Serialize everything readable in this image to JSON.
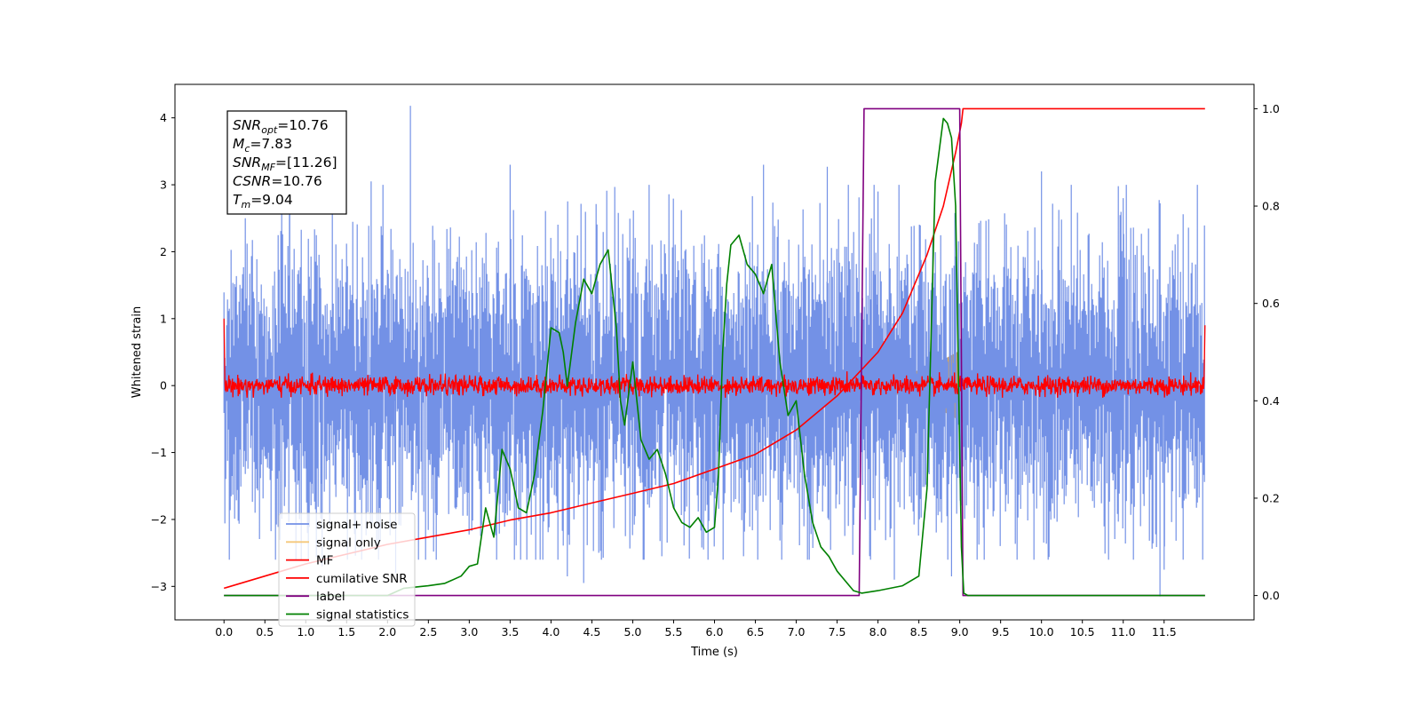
{
  "chart_data": {
    "type": "line",
    "xlabel": "Time (s)",
    "ylabel": "Whitened strain",
    "xlim": [
      -0.6,
      12.6
    ],
    "ylim": [
      -3.5,
      4.5
    ],
    "y2lim": [
      -0.05,
      1.05
    ],
    "xticks": [
      "0.0",
      "0.5",
      "1.0",
      "1.5",
      "2.0",
      "2.5",
      "3.0",
      "3.5",
      "4.0",
      "4.5",
      "5.0",
      "5.5",
      "6.0",
      "6.5",
      "7.0",
      "7.5",
      "8.0",
      "8.5",
      "9.0",
      "9.5",
      "10.0",
      "10.5",
      "11.0",
      "11.5"
    ],
    "yticks": [
      "4",
      "3",
      "2",
      "1",
      "0",
      "−1",
      "−2",
      "−3"
    ],
    "y2ticks": [
      "1.0",
      "0.8",
      "0.6",
      "0.4",
      "0.2",
      "0.0"
    ],
    "grid": false,
    "legend_position": "lower-left",
    "annotation": {
      "lines": [
        {
          "main": "SNR",
          "sub": "opt",
          "rest": "=10.76"
        },
        {
          "main": "M",
          "sub": "c",
          "rest": "=7.83"
        },
        {
          "main": "SNR",
          "sub": "MF",
          "rest": "=[11.26]"
        },
        {
          "main": "CSNR",
          "sub": "",
          "rest": "=10.76"
        },
        {
          "main": "T",
          "sub": "m",
          "rest": "=9.04"
        }
      ]
    },
    "series": [
      {
        "name": "signal+ noise",
        "axis": "left",
        "color": "#7391e6",
        "description_range": [
          -2.9,
          4.2
        ],
        "approx_std": 1.0,
        "x_range": [
          0.0,
          12.0
        ]
      },
      {
        "name": "signal only",
        "axis": "left",
        "color": "#f5c87a",
        "chirp": {
          "start": 7.6,
          "end": 9.04,
          "amp_start": 0.05,
          "amp_end": 0.55
        }
      },
      {
        "name": "MF",
        "axis": "left",
        "color": "#ff0000",
        "approx_std": 0.07,
        "x_range": [
          0.0,
          12.0
        ],
        "edge_values": [
          1.0,
          0.9
        ]
      },
      {
        "name": "cumilative SNR",
        "axis": "right",
        "color": "#ff0000",
        "x": [
          0.0,
          0.5,
          1.0,
          1.5,
          2.0,
          2.5,
          3.0,
          3.5,
          4.0,
          4.5,
          5.0,
          5.5,
          6.0,
          6.5,
          7.0,
          7.5,
          8.0,
          8.3,
          8.6,
          8.8,
          8.95,
          9.02,
          9.04,
          10.0,
          11.0,
          12.0
        ],
        "y": [
          0.015,
          0.04,
          0.065,
          0.085,
          0.105,
          0.12,
          0.135,
          0.155,
          0.17,
          0.19,
          0.21,
          0.23,
          0.26,
          0.29,
          0.34,
          0.41,
          0.5,
          0.58,
          0.7,
          0.8,
          0.91,
          0.97,
          1.0,
          1.0,
          1.0,
          1.0
        ]
      },
      {
        "name": "label",
        "axis": "right",
        "color": "#800080",
        "x": [
          0.0,
          7.77,
          7.83,
          9.0,
          9.04,
          12.0
        ],
        "y": [
          0.0,
          0.0,
          1.0,
          1.0,
          0.0,
          0.0
        ]
      },
      {
        "name": "signal statistics",
        "axis": "right",
        "color": "#008000",
        "x": [
          0.0,
          0.5,
          1.0,
          2.0,
          2.2,
          2.5,
          2.7,
          2.9,
          3.0,
          3.1,
          3.2,
          3.3,
          3.35,
          3.4,
          3.5,
          3.6,
          3.7,
          3.8,
          3.9,
          4.0,
          4.1,
          4.15,
          4.2,
          4.3,
          4.4,
          4.5,
          4.6,
          4.7,
          4.8,
          4.85,
          4.9,
          5.0,
          5.1,
          5.2,
          5.3,
          5.4,
          5.5,
          5.6,
          5.7,
          5.8,
          5.9,
          6.0,
          6.05,
          6.1,
          6.15,
          6.2,
          6.3,
          6.4,
          6.5,
          6.6,
          6.7,
          6.8,
          6.9,
          7.0,
          7.1,
          7.2,
          7.3,
          7.4,
          7.5,
          7.7,
          7.8,
          8.0,
          8.3,
          8.5,
          8.6,
          8.7,
          8.8,
          8.85,
          8.9,
          8.95,
          9.0,
          9.02,
          9.05,
          9.1,
          10.0,
          11.0,
          12.0
        ],
        "y": [
          0.0,
          0.0,
          0.0,
          0.0,
          0.015,
          0.02,
          0.025,
          0.04,
          0.06,
          0.065,
          0.18,
          0.12,
          0.21,
          0.3,
          0.26,
          0.18,
          0.17,
          0.25,
          0.38,
          0.55,
          0.54,
          0.5,
          0.43,
          0.56,
          0.65,
          0.62,
          0.68,
          0.71,
          0.55,
          0.4,
          0.35,
          0.48,
          0.32,
          0.28,
          0.3,
          0.25,
          0.18,
          0.15,
          0.14,
          0.16,
          0.13,
          0.14,
          0.25,
          0.5,
          0.64,
          0.72,
          0.74,
          0.68,
          0.66,
          0.62,
          0.68,
          0.48,
          0.37,
          0.4,
          0.25,
          0.15,
          0.1,
          0.08,
          0.05,
          0.01,
          0.005,
          0.01,
          0.02,
          0.04,
          0.22,
          0.85,
          0.98,
          0.97,
          0.94,
          0.8,
          0.3,
          0.1,
          0.005,
          0.0,
          0.0,
          0.0,
          0.0
        ]
      }
    ]
  }
}
